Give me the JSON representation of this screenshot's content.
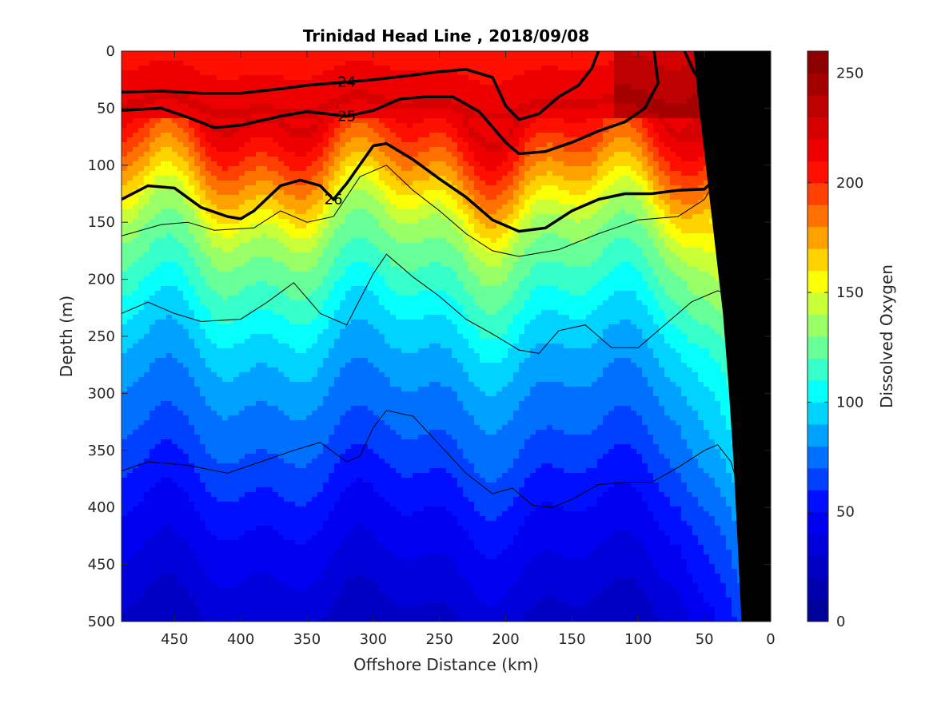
{
  "chart_data": {
    "type": "heatmap",
    "title": "Trinidad Head Line , 2018/09/08",
    "xlabel": "Offshore Distance (km)",
    "ylabel": "Depth (m)",
    "colorbar_label": "Dissolved Oxygen",
    "xlim": [
      490,
      0
    ],
    "ylim": [
      0,
      500
    ],
    "x_reversed": true,
    "y_reversed": true,
    "xticks": [
      450,
      400,
      350,
      300,
      250,
      200,
      150,
      100,
      50,
      0
    ],
    "yticks": [
      0,
      50,
      100,
      150,
      200,
      250,
      300,
      350,
      400,
      450,
      500
    ],
    "colorbar": {
      "range": [
        0,
        260
      ],
      "ticks": [
        0,
        50,
        100,
        150,
        200,
        250
      ],
      "levels": 26,
      "colormap": [
        "#00008f",
        "#0000ff",
        "#00ffff",
        "#ffff00",
        "#ff0000",
        "#800000"
      ]
    },
    "oxygen_profile": {
      "depth": [
        0,
        25,
        50,
        75,
        100,
        125,
        150,
        175,
        200,
        250,
        300,
        350,
        400,
        450,
        500
      ],
      "oxygen": [
        205,
        212,
        222,
        205,
        185,
        165,
        142,
        128,
        118,
        95,
        80,
        68,
        52,
        40,
        28
      ]
    },
    "density_contours": [
      {
        "level": 24,
        "label": "24",
        "bold": true,
        "points": [
          [
            490,
            36
          ],
          [
            460,
            35
          ],
          [
            430,
            37
          ],
          [
            400,
            37
          ],
          [
            370,
            33
          ],
          [
            350,
            30
          ],
          [
            320,
            27
          ],
          [
            300,
            25
          ],
          [
            270,
            21
          ],
          [
            250,
            18
          ],
          [
            230,
            16
          ],
          [
            210,
            23
          ],
          [
            200,
            48
          ],
          [
            190,
            60
          ],
          [
            175,
            55
          ],
          [
            160,
            40
          ],
          [
            145,
            30
          ],
          [
            135,
            15
          ],
          [
            130,
            0
          ]
        ]
      },
      {
        "level": 25,
        "label": "25",
        "bold": true,
        "points": [
          [
            490,
            52
          ],
          [
            460,
            50
          ],
          [
            440,
            58
          ],
          [
            420,
            67
          ],
          [
            400,
            65
          ],
          [
            370,
            57
          ],
          [
            350,
            53
          ],
          [
            320,
            57
          ],
          [
            300,
            52
          ],
          [
            280,
            42
          ],
          [
            260,
            40
          ],
          [
            240,
            40
          ],
          [
            220,
            53
          ],
          [
            200,
            80
          ],
          [
            190,
            90
          ],
          [
            170,
            88
          ],
          [
            150,
            80
          ],
          [
            130,
            70
          ],
          [
            110,
            62
          ],
          [
            95,
            50
          ],
          [
            85,
            28
          ],
          [
            88,
            0
          ]
        ]
      },
      {
        "level": 25,
        "label": "25",
        "bold": true,
        "points": [
          [
            65,
            0
          ],
          [
            58,
            18
          ],
          [
            50,
            32
          ],
          [
            40,
            28
          ],
          [
            35,
            12
          ],
          [
            33,
            0
          ]
        ]
      },
      {
        "level": 26,
        "label": "26",
        "bold": true,
        "points": [
          [
            490,
            130
          ],
          [
            470,
            118
          ],
          [
            450,
            120
          ],
          [
            430,
            137
          ],
          [
            410,
            145
          ],
          [
            400,
            147
          ],
          [
            390,
            140
          ],
          [
            370,
            118
          ],
          [
            355,
            113
          ],
          [
            340,
            118
          ],
          [
            330,
            130
          ],
          [
            320,
            116
          ],
          [
            300,
            83
          ],
          [
            290,
            81
          ],
          [
            270,
            95
          ],
          [
            250,
            112
          ],
          [
            230,
            128
          ],
          [
            210,
            148
          ],
          [
            190,
            158
          ],
          [
            170,
            155
          ],
          [
            150,
            140
          ],
          [
            130,
            130
          ],
          [
            110,
            125
          ],
          [
            90,
            125
          ],
          [
            70,
            122
          ],
          [
            50,
            121
          ],
          [
            40,
            110
          ],
          [
            30,
            70
          ],
          [
            20,
            30
          ],
          [
            12,
            22
          ]
        ]
      },
      {
        "level": 26.2,
        "label": "",
        "bold": false,
        "points": [
          [
            490,
            162
          ],
          [
            460,
            152
          ],
          [
            440,
            150
          ],
          [
            420,
            157
          ],
          [
            390,
            155
          ],
          [
            370,
            140
          ],
          [
            350,
            150
          ],
          [
            330,
            145
          ],
          [
            310,
            110
          ],
          [
            290,
            100
          ],
          [
            270,
            122
          ],
          [
            250,
            140
          ],
          [
            230,
            160
          ],
          [
            210,
            175
          ],
          [
            190,
            180
          ],
          [
            160,
            174
          ],
          [
            130,
            160
          ],
          [
            100,
            148
          ],
          [
            70,
            145
          ],
          [
            50,
            130
          ],
          [
            35,
            100
          ],
          [
            25,
            60
          ],
          [
            15,
            30
          ]
        ]
      },
      {
        "level": 26.4,
        "label": "",
        "bold": false,
        "points": [
          [
            490,
            230
          ],
          [
            470,
            220
          ],
          [
            450,
            230
          ],
          [
            430,
            237
          ],
          [
            400,
            235
          ],
          [
            380,
            220
          ],
          [
            360,
            203
          ],
          [
            340,
            230
          ],
          [
            320,
            240
          ],
          [
            300,
            195
          ],
          [
            290,
            178
          ],
          [
            270,
            198
          ],
          [
            250,
            215
          ],
          [
            230,
            235
          ],
          [
            210,
            248
          ],
          [
            190,
            262
          ],
          [
            175,
            265
          ],
          [
            160,
            245
          ],
          [
            140,
            240
          ],
          [
            120,
            260
          ],
          [
            100,
            260
          ],
          [
            80,
            240
          ],
          [
            60,
            220
          ],
          [
            40,
            210
          ],
          [
            25,
            215
          ],
          [
            20,
            240
          ],
          [
            18,
            270
          ]
        ]
      },
      {
        "level": 26.6,
        "label": "",
        "bold": false,
        "points": [
          [
            490,
            368
          ],
          [
            470,
            360
          ],
          [
            440,
            363
          ],
          [
            410,
            370
          ],
          [
            385,
            360
          ],
          [
            360,
            350
          ],
          [
            340,
            343
          ],
          [
            320,
            360
          ],
          [
            310,
            355
          ],
          [
            300,
            330
          ],
          [
            290,
            315
          ],
          [
            270,
            320
          ],
          [
            250,
            345
          ],
          [
            230,
            370
          ],
          [
            210,
            388
          ],
          [
            195,
            383
          ],
          [
            180,
            398
          ],
          [
            165,
            400
          ],
          [
            150,
            393
          ],
          [
            130,
            380
          ],
          [
            110,
            378
          ],
          [
            90,
            378
          ],
          [
            70,
            365
          ],
          [
            50,
            350
          ],
          [
            40,
            345
          ],
          [
            30,
            360
          ],
          [
            25,
            380
          ],
          [
            22,
            390
          ]
        ]
      }
    ],
    "bathymetry": [
      [
        22,
        500
      ],
      [
        25,
        430
      ],
      [
        28,
        360
      ],
      [
        32,
        290
      ],
      [
        36,
        230
      ],
      [
        42,
        170
      ],
      [
        48,
        110
      ],
      [
        55,
        40
      ],
      [
        58,
        0
      ],
      [
        0,
        0
      ],
      [
        0,
        500
      ]
    ]
  }
}
